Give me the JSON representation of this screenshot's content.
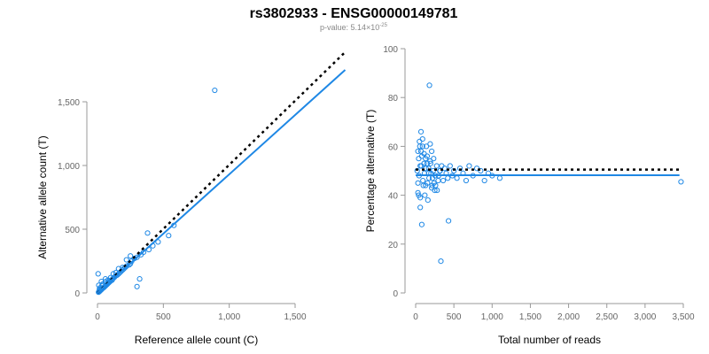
{
  "title": "rs3802933 - ENSG00000149781",
  "subtitle": {
    "prefix": "p-value: 5.14×10",
    "exponent": "-25"
  },
  "colors": {
    "points": "#1f88e5",
    "fit": "#1f88e5",
    "reference": "#000000",
    "axis": "#999999"
  },
  "chart_data": [
    {
      "type": "scatter",
      "xlabel": "Reference allele count (C)",
      "ylabel": "Alternative allele count (T)",
      "xlim": [
        -50,
        1900
      ],
      "ylim": [
        -70,
        1720
      ],
      "xticks": [
        0,
        500,
        1000,
        1500
      ],
      "xtick_labels": [
        "0",
        "500",
        "1,000",
        "1,500"
      ],
      "yticks": [
        0,
        500,
        1000,
        1500
      ],
      "ytick_labels": [
        "0",
        "500",
        "1,000",
        "1,500"
      ],
      "grid": false,
      "reference_line": {
        "style": "dotted",
        "points": [
          [
            0,
            0
          ],
          [
            1880,
            1890
          ]
        ]
      },
      "fit_line": {
        "style": "solid",
        "points": [
          [
            0,
            0
          ],
          [
            1880,
            1750
          ]
        ]
      },
      "points": [
        [
          890,
          1590
        ],
        [
          380,
          470
        ],
        [
          580,
          530
        ],
        [
          300,
          50
        ],
        [
          320,
          110
        ],
        [
          540,
          450
        ],
        [
          460,
          400
        ],
        [
          420,
          370
        ],
        [
          390,
          340
        ],
        [
          350,
          320
        ],
        [
          330,
          300
        ],
        [
          300,
          280
        ],
        [
          280,
          270
        ],
        [
          260,
          250
        ],
        [
          250,
          230
        ],
        [
          240,
          220
        ],
        [
          220,
          210
        ],
        [
          210,
          200
        ],
        [
          200,
          190
        ],
        [
          190,
          180
        ],
        [
          180,
          170
        ],
        [
          170,
          160
        ],
        [
          160,
          150
        ],
        [
          150,
          140
        ],
        [
          140,
          135
        ],
        [
          130,
          125
        ],
        [
          120,
          115
        ],
        [
          115,
          110
        ],
        [
          110,
          100
        ],
        [
          100,
          95
        ],
        [
          95,
          90
        ],
        [
          90,
          85
        ],
        [
          85,
          80
        ],
        [
          80,
          75
        ],
        [
          75,
          70
        ],
        [
          70,
          65
        ],
        [
          65,
          60
        ],
        [
          60,
          55
        ],
        [
          55,
          50
        ],
        [
          50,
          45
        ],
        [
          45,
          40
        ],
        [
          40,
          38
        ],
        [
          35,
          32
        ],
        [
          30,
          28
        ],
        [
          28,
          25
        ],
        [
          25,
          22
        ],
        [
          22,
          20
        ],
        [
          20,
          18
        ],
        [
          18,
          15
        ],
        [
          15,
          12
        ],
        [
          12,
          10
        ],
        [
          10,
          8
        ],
        [
          8,
          6
        ],
        [
          5,
          150
        ],
        [
          10,
          60
        ],
        [
          30,
          90
        ],
        [
          60,
          110
        ],
        [
          120,
          150
        ],
        [
          160,
          190
        ],
        [
          220,
          260
        ],
        [
          250,
          290
        ],
        [
          190,
          200
        ],
        [
          140,
          160
        ],
        [
          100,
          120
        ],
        [
          80,
          100
        ],
        [
          60,
          90
        ],
        [
          40,
          70
        ],
        [
          20,
          40
        ],
        [
          15,
          30
        ],
        [
          35,
          60
        ]
      ]
    },
    {
      "type": "scatter",
      "xlabel": "Total number of reads",
      "ylabel": "Percentage alternative (T)",
      "xlim": [
        -100,
        3550
      ],
      "ylim": [
        -2,
        100
      ],
      "xticks": [
        0,
        500,
        1000,
        1500,
        2000,
        2500,
        3000,
        3500
      ],
      "xtick_labels": [
        "0",
        "500",
        "1,000",
        "1,500",
        "2,000",
        "2,500",
        "3,000",
        "3,500"
      ],
      "yticks": [
        0,
        20,
        40,
        60,
        80,
        100
      ],
      "ytick_labels": [
        "0",
        "20",
        "40",
        "60",
        "80",
        "100"
      ],
      "grid": false,
      "reference_line": {
        "style": "dotted",
        "points": [
          [
            0,
            50.5
          ],
          [
            3450,
            50.5
          ]
        ]
      },
      "fit_line": {
        "style": "solid",
        "points": [
          [
            0,
            48.2
          ],
          [
            3450,
            48.2
          ]
        ]
      },
      "points": [
        [
          180,
          85
        ],
        [
          330,
          13
        ],
        [
          430,
          29.5
        ],
        [
          3470,
          45.5
        ],
        [
          80,
          28
        ],
        [
          60,
          35
        ],
        [
          40,
          40
        ],
        [
          30,
          58
        ],
        [
          50,
          62
        ],
        [
          70,
          66
        ],
        [
          90,
          60
        ],
        [
          110,
          57
        ],
        [
          130,
          55
        ],
        [
          150,
          53
        ],
        [
          170,
          51
        ],
        [
          200,
          49
        ],
        [
          220,
          47
        ],
        [
          240,
          45
        ],
        [
          260,
          44
        ],
        [
          280,
          42
        ],
        [
          300,
          48
        ],
        [
          320,
          50
        ],
        [
          340,
          52
        ],
        [
          360,
          46
        ],
        [
          380,
          51
        ],
        [
          400,
          49
        ],
        [
          420,
          47
        ],
        [
          450,
          52
        ],
        [
          480,
          48
        ],
        [
          500,
          50
        ],
        [
          540,
          47
        ],
        [
          580,
          51
        ],
        [
          620,
          49
        ],
        [
          660,
          46
        ],
        [
          700,
          52
        ],
        [
          750,
          48
        ],
        [
          800,
          51
        ],
        [
          850,
          50
        ],
        [
          900,
          46
        ],
        [
          950,
          49
        ],
        [
          1000,
          48
        ],
        [
          1100,
          47
        ],
        [
          60,
          52
        ],
        [
          80,
          56
        ],
        [
          100,
          44
        ],
        [
          120,
          40
        ],
        [
          140,
          60
        ],
        [
          160,
          38
        ],
        [
          190,
          54
        ],
        [
          210,
          58
        ],
        [
          230,
          50
        ],
        [
          250,
          42
        ],
        [
          40,
          55
        ],
        [
          20,
          50
        ],
        [
          30,
          45
        ],
        [
          45,
          48
        ],
        [
          55,
          60
        ],
        [
          75,
          52
        ],
        [
          95,
          46
        ],
        [
          115,
          49
        ],
        [
          135,
          51
        ],
        [
          155,
          45
        ],
        [
          175,
          47
        ],
        [
          195,
          53
        ],
        [
          215,
          44
        ],
        [
          235,
          55
        ],
        [
          255,
          48
        ],
        [
          275,
          52
        ],
        [
          295,
          46
        ],
        [
          315,
          50
        ],
        [
          90,
          63
        ],
        [
          70,
          58
        ],
        [
          110,
          53
        ],
        [
          130,
          44
        ],
        [
          150,
          56
        ],
        [
          170,
          49
        ],
        [
          190,
          61
        ],
        [
          210,
          43
        ],
        [
          30,
          41
        ],
        [
          60,
          39
        ]
      ]
    }
  ]
}
